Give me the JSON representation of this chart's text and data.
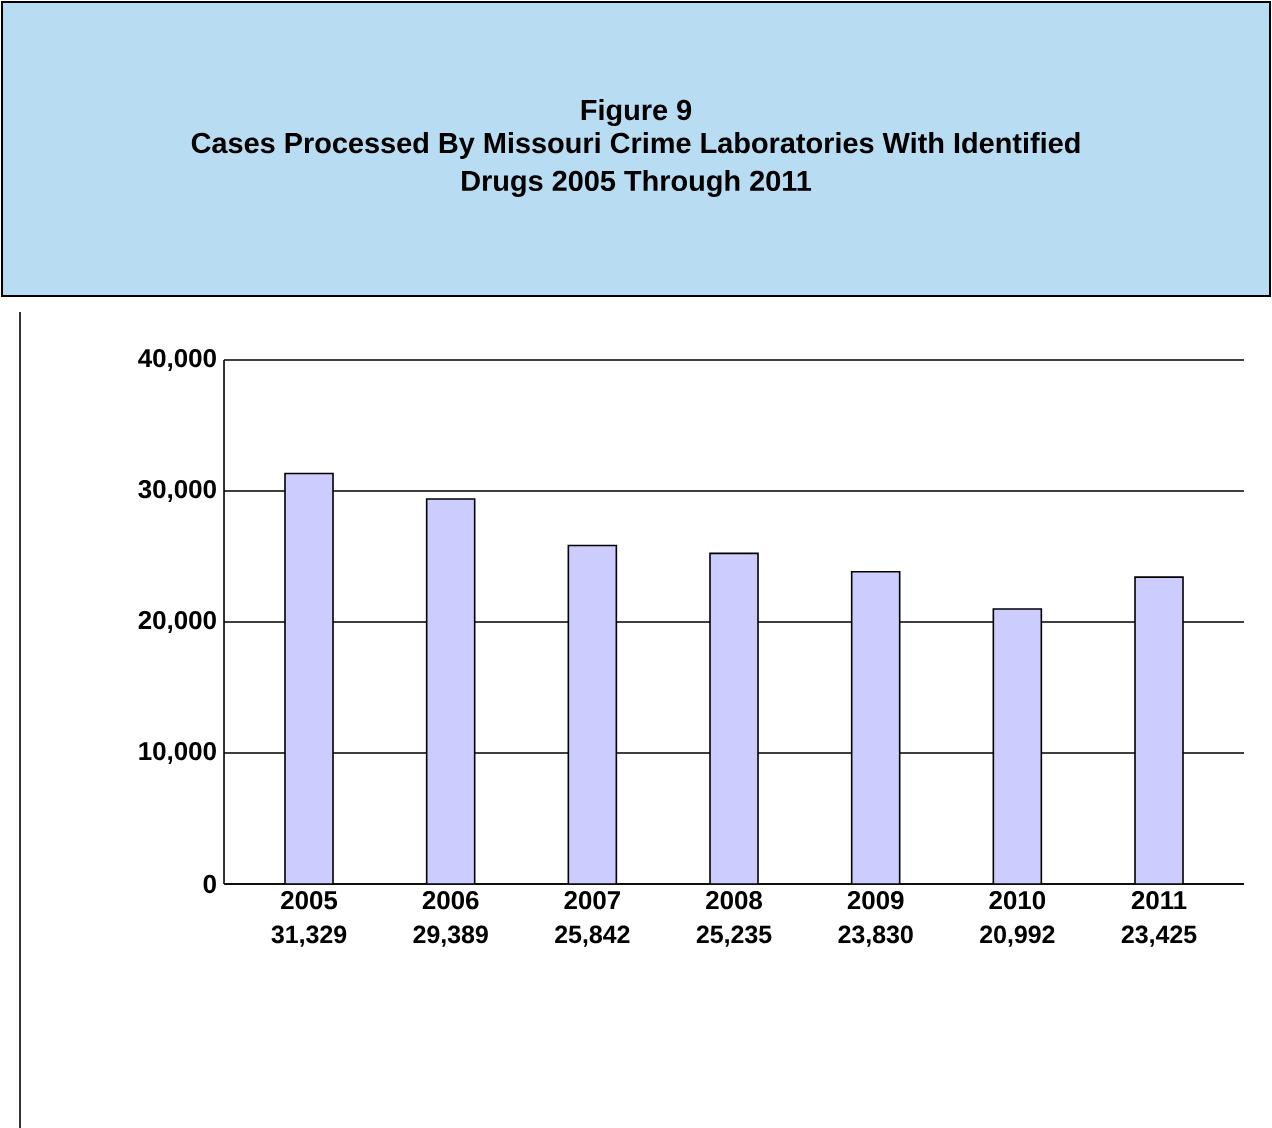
{
  "chart_data": {
    "type": "bar",
    "title": "Figure 9",
    "subtitle": "Cases Processed By Missouri Crime Laboratories With Identified Drugs 2005 Through 2011",
    "categories": [
      "2005",
      "2006",
      "2007",
      "2008",
      "2009",
      "2010",
      "2011"
    ],
    "values": [
      31329,
      29389,
      25842,
      25235,
      23830,
      20992,
      23425
    ],
    "value_labels": [
      "31,329",
      "29,389",
      "25,842",
      "25,235",
      "23,830",
      "20,992",
      "23,425"
    ],
    "color": "#ccccff",
    "ylim": [
      0,
      40000
    ],
    "yticks": [
      {
        "value": 0,
        "label": "0"
      },
      {
        "value": 10000,
        "label": "10,000"
      },
      {
        "value": 20000,
        "label": "20,000"
      },
      {
        "value": 30000,
        "label": "30,000"
      },
      {
        "value": 40000,
        "label": "40,000"
      }
    ],
    "grid": "y"
  }
}
